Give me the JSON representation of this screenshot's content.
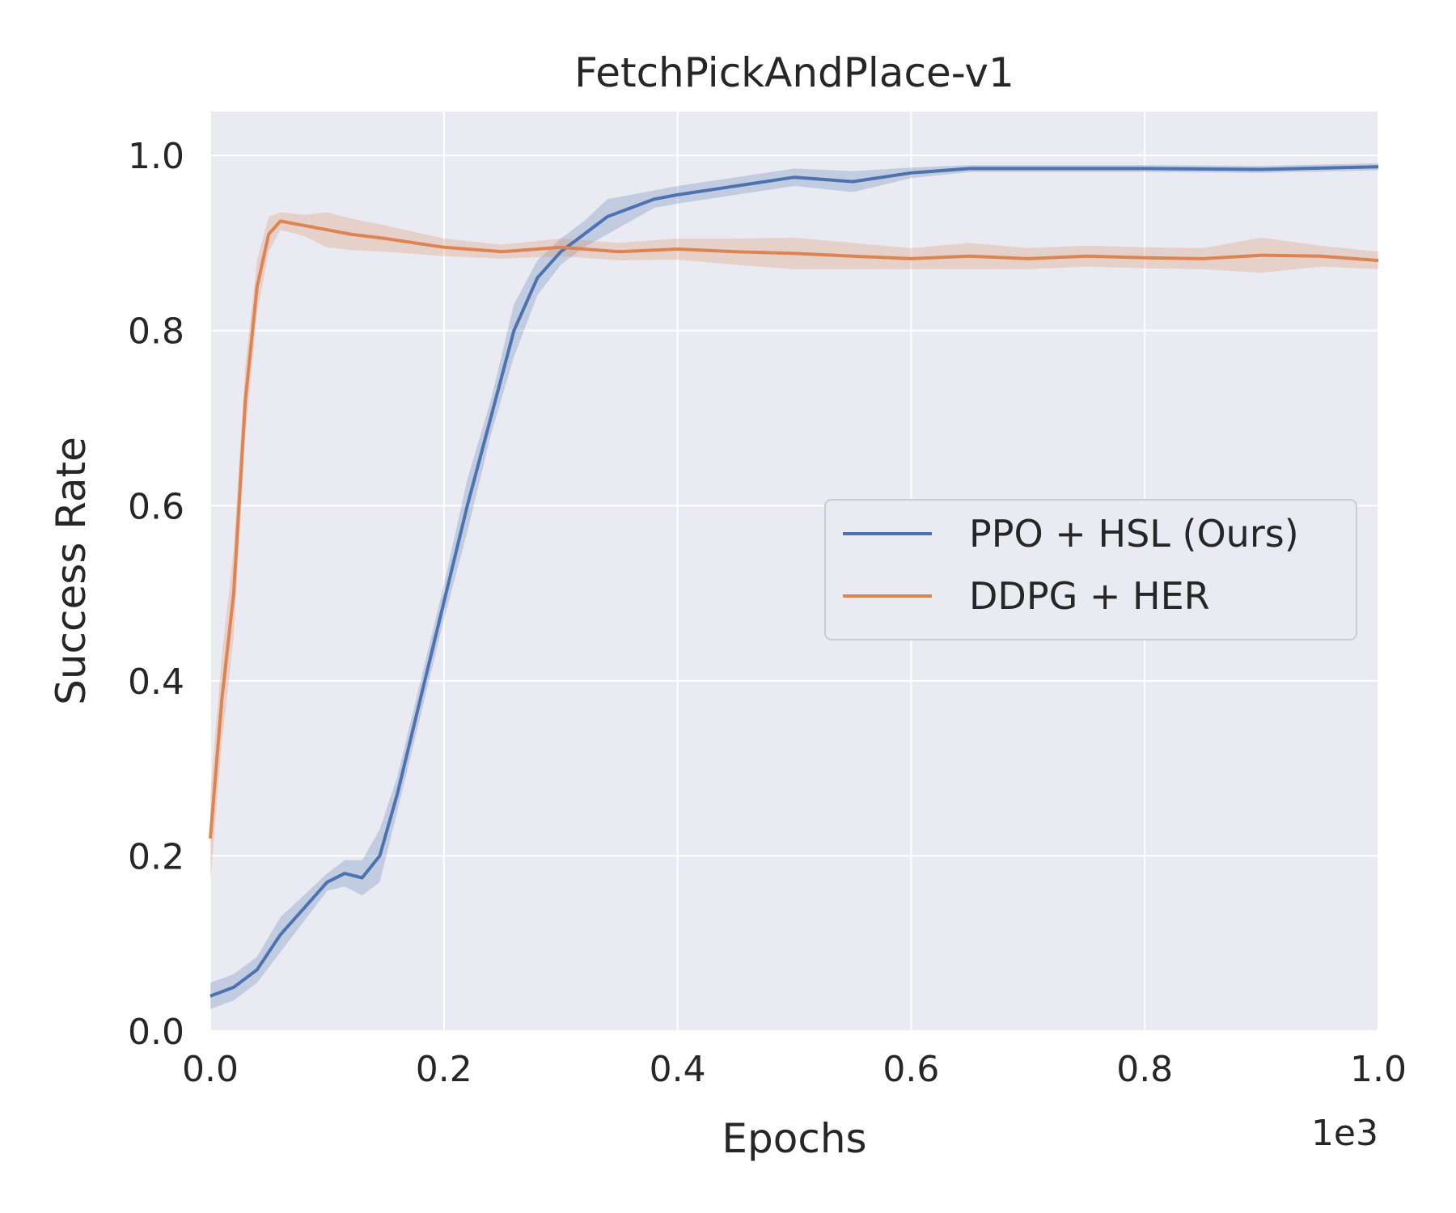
{
  "chart_data": {
    "type": "line",
    "title": "FetchPickAndPlace-v1",
    "xlabel": "Epochs",
    "ylabel": "Success Rate",
    "x_offset_label": "1e3",
    "xlim": [
      0.0,
      1.0
    ],
    "ylim": [
      0.0,
      1.05
    ],
    "xticks": [
      "0.0",
      "0.2",
      "0.4",
      "0.6",
      "0.8",
      "1.0"
    ],
    "yticks": [
      "0.0",
      "0.2",
      "0.4",
      "0.6",
      "0.8",
      "1.0"
    ],
    "grid": true,
    "legend_position": "center-right",
    "series": [
      {
        "name": "PPO + HSL (Ours)",
        "color": "#4c72b0",
        "points": [
          [
            0.0,
            0.04
          ],
          [
            0.02,
            0.05
          ],
          [
            0.04,
            0.07
          ],
          [
            0.06,
            0.11
          ],
          [
            0.08,
            0.14
          ],
          [
            0.1,
            0.17
          ],
          [
            0.115,
            0.18
          ],
          [
            0.13,
            0.175
          ],
          [
            0.145,
            0.2
          ],
          [
            0.16,
            0.27
          ],
          [
            0.18,
            0.38
          ],
          [
            0.2,
            0.49
          ],
          [
            0.22,
            0.6
          ],
          [
            0.24,
            0.7
          ],
          [
            0.26,
            0.8
          ],
          [
            0.28,
            0.86
          ],
          [
            0.3,
            0.89
          ],
          [
            0.32,
            0.91
          ],
          [
            0.34,
            0.93
          ],
          [
            0.36,
            0.94
          ],
          [
            0.38,
            0.95
          ],
          [
            0.4,
            0.955
          ],
          [
            0.45,
            0.965
          ],
          [
            0.5,
            0.975
          ],
          [
            0.55,
            0.97
          ],
          [
            0.6,
            0.98
          ],
          [
            0.65,
            0.985
          ],
          [
            0.7,
            0.985
          ],
          [
            0.8,
            0.985
          ],
          [
            0.9,
            0.984
          ],
          [
            1.0,
            0.987
          ]
        ],
        "band": [
          0.015,
          0.015,
          0.015,
          0.02,
          0.015,
          0.01,
          0.015,
          0.02,
          0.03,
          0.02,
          0.02,
          0.02,
          0.03,
          0.02,
          0.03,
          0.02,
          0.015,
          0.015,
          0.02,
          0.015,
          0.01,
          0.01,
          0.01,
          0.01,
          0.012,
          0.006,
          0.004,
          0.004,
          0.004,
          0.004,
          0.004
        ]
      },
      {
        "name": "DDPG + HER",
        "color": "#dd8452",
        "points": [
          [
            0.0,
            0.22
          ],
          [
            0.01,
            0.38
          ],
          [
            0.02,
            0.5
          ],
          [
            0.03,
            0.72
          ],
          [
            0.04,
            0.85
          ],
          [
            0.05,
            0.91
          ],
          [
            0.06,
            0.925
          ],
          [
            0.08,
            0.92
          ],
          [
            0.1,
            0.915
          ],
          [
            0.12,
            0.91
          ],
          [
            0.15,
            0.905
          ],
          [
            0.2,
            0.895
          ],
          [
            0.25,
            0.89
          ],
          [
            0.3,
            0.895
          ],
          [
            0.35,
            0.89
          ],
          [
            0.4,
            0.893
          ],
          [
            0.45,
            0.89
          ],
          [
            0.5,
            0.888
          ],
          [
            0.55,
            0.885
          ],
          [
            0.6,
            0.882
          ],
          [
            0.65,
            0.885
          ],
          [
            0.7,
            0.882
          ],
          [
            0.75,
            0.885
          ],
          [
            0.8,
            0.883
          ],
          [
            0.85,
            0.882
          ],
          [
            0.9,
            0.886
          ],
          [
            0.95,
            0.885
          ],
          [
            1.0,
            0.88
          ]
        ],
        "band": [
          0.05,
          0.05,
          0.05,
          0.04,
          0.03,
          0.02,
          0.01,
          0.012,
          0.02,
          0.018,
          0.015,
          0.01,
          0.008,
          0.01,
          0.01,
          0.012,
          0.015,
          0.018,
          0.015,
          0.012,
          0.015,
          0.012,
          0.012,
          0.012,
          0.012,
          0.02,
          0.012,
          0.01
        ]
      }
    ]
  }
}
